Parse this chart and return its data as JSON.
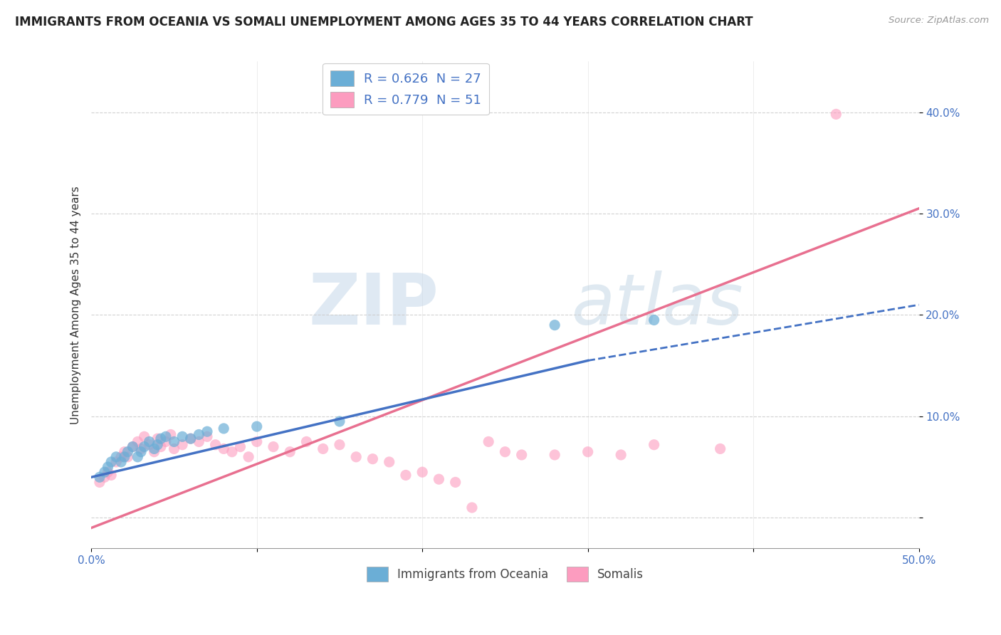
{
  "title": "IMMIGRANTS FROM OCEANIA VS SOMALI UNEMPLOYMENT AMONG AGES 35 TO 44 YEARS CORRELATION CHART",
  "source": "Source: ZipAtlas.com",
  "ylabel": "Unemployment Among Ages 35 to 44 years",
  "xlim": [
    0.0,
    0.5
  ],
  "ylim": [
    -0.03,
    0.45
  ],
  "xticks": [
    0.0,
    0.1,
    0.2,
    0.3,
    0.4,
    0.5
  ],
  "xticklabels": [
    "0.0%",
    "",
    "",
    "",
    "",
    "50.0%"
  ],
  "yticks": [
    0.0,
    0.1,
    0.2,
    0.3,
    0.4
  ],
  "yticklabels": [
    "",
    "10.0%",
    "20.0%",
    "30.0%",
    "40.0%"
  ],
  "legend_entries": [
    {
      "label": "R = 0.626  N = 27",
      "color": "#a8c8e8"
    },
    {
      "label": "R = 0.779  N = 51",
      "color": "#f4b8c8"
    }
  ],
  "oceania_scatter": [
    [
      0.005,
      0.04
    ],
    [
      0.008,
      0.045
    ],
    [
      0.01,
      0.05
    ],
    [
      0.012,
      0.055
    ],
    [
      0.015,
      0.06
    ],
    [
      0.018,
      0.055
    ],
    [
      0.02,
      0.06
    ],
    [
      0.022,
      0.065
    ],
    [
      0.025,
      0.07
    ],
    [
      0.028,
      0.06
    ],
    [
      0.03,
      0.065
    ],
    [
      0.032,
      0.07
    ],
    [
      0.035,
      0.075
    ],
    [
      0.038,
      0.068
    ],
    [
      0.04,
      0.072
    ],
    [
      0.042,
      0.078
    ],
    [
      0.045,
      0.08
    ],
    [
      0.05,
      0.075
    ],
    [
      0.055,
      0.08
    ],
    [
      0.06,
      0.078
    ],
    [
      0.065,
      0.082
    ],
    [
      0.07,
      0.085
    ],
    [
      0.08,
      0.088
    ],
    [
      0.1,
      0.09
    ],
    [
      0.15,
      0.095
    ],
    [
      0.28,
      0.19
    ],
    [
      0.34,
      0.195
    ]
  ],
  "somali_scatter": [
    [
      0.005,
      0.035
    ],
    [
      0.008,
      0.04
    ],
    [
      0.01,
      0.045
    ],
    [
      0.012,
      0.042
    ],
    [
      0.015,
      0.055
    ],
    [
      0.018,
      0.06
    ],
    [
      0.02,
      0.065
    ],
    [
      0.022,
      0.06
    ],
    [
      0.025,
      0.07
    ],
    [
      0.028,
      0.075
    ],
    [
      0.03,
      0.068
    ],
    [
      0.032,
      0.08
    ],
    [
      0.035,
      0.072
    ],
    [
      0.038,
      0.065
    ],
    [
      0.04,
      0.078
    ],
    [
      0.042,
      0.07
    ],
    [
      0.045,
      0.075
    ],
    [
      0.048,
      0.082
    ],
    [
      0.05,
      0.068
    ],
    [
      0.055,
      0.072
    ],
    [
      0.06,
      0.078
    ],
    [
      0.065,
      0.075
    ],
    [
      0.07,
      0.08
    ],
    [
      0.075,
      0.072
    ],
    [
      0.08,
      0.068
    ],
    [
      0.085,
      0.065
    ],
    [
      0.09,
      0.07
    ],
    [
      0.095,
      0.06
    ],
    [
      0.1,
      0.075
    ],
    [
      0.11,
      0.07
    ],
    [
      0.12,
      0.065
    ],
    [
      0.13,
      0.075
    ],
    [
      0.14,
      0.068
    ],
    [
      0.15,
      0.072
    ],
    [
      0.16,
      0.06
    ],
    [
      0.17,
      0.058
    ],
    [
      0.18,
      0.055
    ],
    [
      0.19,
      0.042
    ],
    [
      0.2,
      0.045
    ],
    [
      0.21,
      0.038
    ],
    [
      0.22,
      0.035
    ],
    [
      0.23,
      0.01
    ],
    [
      0.24,
      0.075
    ],
    [
      0.25,
      0.065
    ],
    [
      0.26,
      0.062
    ],
    [
      0.28,
      0.062
    ],
    [
      0.3,
      0.065
    ],
    [
      0.32,
      0.062
    ],
    [
      0.34,
      0.072
    ],
    [
      0.38,
      0.068
    ],
    [
      0.45,
      0.398
    ]
  ],
  "oceania_line_solid": [
    [
      0.0,
      0.04
    ],
    [
      0.3,
      0.155
    ]
  ],
  "oceania_line_dashed": [
    [
      0.3,
      0.155
    ],
    [
      0.5,
      0.21
    ]
  ],
  "somali_line": [
    [
      0.0,
      -0.01
    ],
    [
      0.5,
      0.305
    ]
  ],
  "oceania_color": "#6baed6",
  "somali_color": "#fc9cbf",
  "oceania_line_color": "#4472C4",
  "somali_line_color": "#e87090",
  "watermark_zip": "ZIP",
  "watermark_atlas": "atlas",
  "title_fontsize": 12,
  "axis_label_fontsize": 11,
  "tick_fontsize": 11,
  "background_color": "#ffffff"
}
